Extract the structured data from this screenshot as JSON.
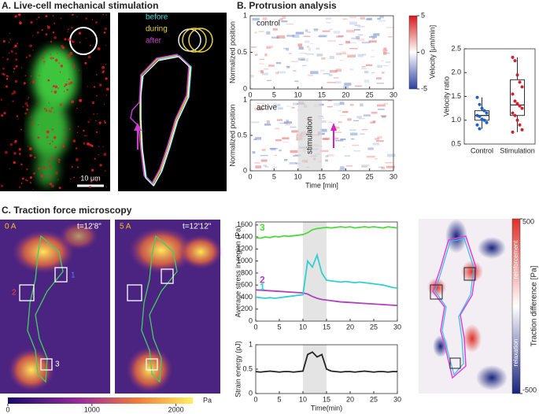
{
  "panels": {
    "a": {
      "title": "A. Live-cell mechanical stimulation",
      "scale_bar": "10 μm",
      "legend": [
        "before",
        "during",
        "after"
      ]
    },
    "b": {
      "title": "B. Protrusion analysis",
      "colorbar": {
        "label": "Velocity [μm/min]",
        "lim": [
          -5,
          5
        ],
        "ticks": [
          5,
          0,
          -5
        ]
      }
    },
    "c": {
      "title": "C. Traction force microscopy",
      "images": [
        {
          "current": "0 A",
          "time": "t=12'8\""
        },
        {
          "current": "5 A",
          "time": "t=12'12\""
        }
      ],
      "colorbar": {
        "label": "Pa",
        "lim": [
          0,
          2200
        ],
        "ticks": [
          0,
          1000,
          2000
        ]
      },
      "traction_colorbar": {
        "label": "Traction difference [Pa]",
        "lim": [
          -500,
          500
        ],
        "ticks": [
          500,
          -500
        ],
        "upper": "reinforcement",
        "lower": "relaxation"
      }
    }
  },
  "chart_data": [
    {
      "type": "heatmap",
      "label": "control",
      "ylabel": "Normalized position",
      "xlim": [
        0,
        30
      ],
      "xticks": [
        0,
        5,
        10,
        15,
        20,
        25,
        30
      ],
      "ylim": [
        0,
        1
      ],
      "yticks": [
        0,
        0.5,
        1
      ]
    },
    {
      "type": "heatmap",
      "label": "active",
      "ylabel": "Normalized position",
      "xlabel": "Time [min]",
      "annotation": "stimulation",
      "highlight_x": [
        10,
        15
      ],
      "xlim": [
        0,
        30
      ],
      "xticks": [
        0,
        5,
        10,
        15,
        20,
        25,
        30
      ],
      "ylim": [
        0,
        1
      ],
      "yticks": [
        0,
        0.5,
        1
      ]
    },
    {
      "type": "box",
      "ylabel": "Velocity ratio",
      "categories": [
        "Control",
        "Stimulation"
      ],
      "colors": [
        "#2060c0",
        "#d02030"
      ],
      "whisker_low": [
        0.82,
        0.75
      ],
      "q1": [
        1.0,
        1.1
      ],
      "median": [
        1.1,
        1.32
      ],
      "q3": [
        1.2,
        1.85
      ],
      "whisker_high": [
        1.48,
        2.32
      ],
      "points": [
        [
          1.48,
          1.33,
          1.25,
          1.2,
          1.15,
          1.1,
          1.08,
          1.02,
          1.0,
          0.95,
          0.9,
          0.82
        ],
        [
          2.32,
          2.25,
          1.95,
          1.8,
          1.7,
          1.55,
          1.4,
          1.35,
          1.3,
          1.25,
          1.15,
          1.1,
          1.0,
          0.9,
          0.8,
          0.75
        ]
      ],
      "ylim": [
        0.5,
        2.5
      ],
      "yticks": [
        0.5,
        {
          "value": 1,
          "label": "1.0"
        },
        1.5,
        {
          "value": 2,
          "label": "2.0"
        },
        2.5
      ]
    },
    {
      "type": "line",
      "ylabel": "Average stress in region (Pa)",
      "highlight_x": [
        10,
        15
      ],
      "x": [
        0,
        1,
        2,
        3,
        4,
        5,
        6,
        7,
        8,
        9,
        10,
        11,
        12,
        13,
        14,
        15,
        16,
        17,
        18,
        19,
        20,
        21,
        22,
        23,
        24,
        25,
        26,
        27,
        28,
        29,
        30
      ],
      "series": [
        {
          "name": "3",
          "color": "#4cd93a",
          "values": [
            1390,
            1380,
            1400,
            1390,
            1410,
            1400,
            1420,
            1410,
            1420,
            1430,
            1440,
            1470,
            1520,
            1540,
            1550,
            1560,
            1550,
            1560,
            1570,
            1560,
            1570,
            1550,
            1560,
            1570,
            1560,
            1570,
            1560,
            1550,
            1570,
            1560,
            1550
          ]
        },
        {
          "name": "2",
          "color": "#b040c0",
          "values": [
            520,
            515,
            510,
            505,
            500,
            495,
            490,
            485,
            480,
            475,
            470,
            450,
            410,
            380,
            360,
            350,
            340,
            330,
            320,
            315,
            310,
            305,
            300,
            295,
            290,
            285,
            280,
            275,
            270,
            265,
            260
          ]
        },
        {
          "name": "1",
          "color": "#30d0d0",
          "values": [
            400,
            390,
            380,
            390,
            380,
            390,
            400,
            410,
            420,
            430,
            440,
            1000,
            900,
            1100,
            800,
            680,
            670,
            660,
            650,
            660,
            650,
            640,
            650,
            640,
            630,
            620,
            610,
            600,
            580,
            560,
            550
          ]
        }
      ],
      "xlim": [
        0,
        30
      ],
      "xticks": [
        0,
        5,
        10,
        15,
        20,
        25,
        30
      ],
      "ylim": [
        0,
        1650
      ],
      "yticks": [
        0,
        200,
        400,
        600,
        800,
        1000,
        1200,
        1400,
        1600
      ]
    },
    {
      "type": "line",
      "ylabel": "Strain energy (pJ)",
      "xlabel": "Time(min)",
      "highlight_x": [
        10,
        15
      ],
      "x": [
        0,
        1,
        2,
        3,
        4,
        5,
        6,
        7,
        8,
        9,
        10,
        11,
        12,
        13,
        14,
        15,
        16,
        17,
        18,
        19,
        20,
        21,
        22,
        23,
        24,
        25,
        26,
        27,
        28,
        29,
        30
      ],
      "series": [
        {
          "name": null,
          "color": "#222222",
          "values": [
            0.45,
            0.44,
            0.45,
            0.46,
            0.45,
            0.44,
            0.45,
            0.45,
            0.44,
            0.45,
            0.46,
            0.8,
            0.85,
            0.75,
            0.8,
            0.5,
            0.46,
            0.45,
            0.44,
            0.45,
            0.45,
            0.44,
            0.45,
            0.46,
            0.45,
            0.44,
            0.45,
            0.45,
            0.44,
            0.45,
            0.45
          ]
        }
      ],
      "xlim": [
        0,
        30
      ],
      "xticks": [
        0,
        5,
        10,
        15,
        20,
        25,
        30
      ],
      "ylim": [
        0,
        1
      ],
      "yticks": [
        0,
        0.5,
        1
      ]
    }
  ]
}
